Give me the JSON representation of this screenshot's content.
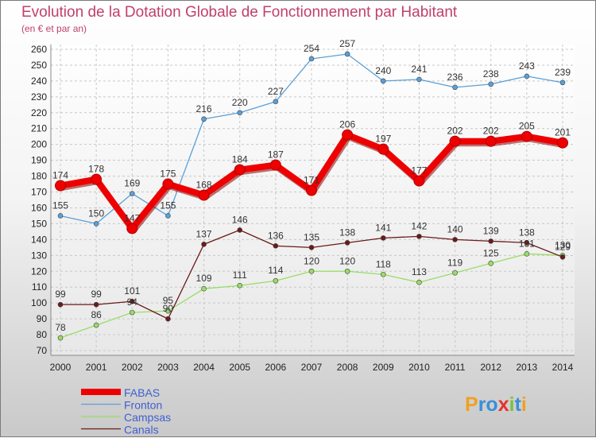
{
  "chart_data": {
    "type": "line",
    "title": "Evolution de la Dotation Globale de Fonctionnement par Habitant",
    "subtitle": "(en € et par an)",
    "x": [
      "2000",
      "2001",
      "2002",
      "2003",
      "2004",
      "2005",
      "2006",
      "2007",
      "2008",
      "2009",
      "2010",
      "2011",
      "2012",
      "2013",
      "2014"
    ],
    "ylim": [
      70,
      260
    ],
    "yticks": [
      70,
      80,
      90,
      100,
      110,
      120,
      130,
      140,
      150,
      160,
      170,
      180,
      190,
      200,
      210,
      220,
      230,
      240,
      250,
      260
    ],
    "grid": true,
    "legend_position": "bottom-left",
    "series": [
      {
        "name": "FABAS",
        "color": "#ee0000",
        "values": [
          174,
          178,
          147,
          175,
          168,
          184,
          187,
          171,
          206,
          197,
          177,
          202,
          202,
          205,
          201
        ]
      },
      {
        "name": "Fronton",
        "color": "#5aa0d8",
        "values": [
          155,
          150,
          169,
          155,
          216,
          220,
          227,
          254,
          257,
          240,
          241,
          236,
          238,
          243,
          239
        ]
      },
      {
        "name": "Campsas",
        "color": "#99dd66",
        "values": [
          78,
          86,
          94,
          95,
          109,
          111,
          114,
          120,
          120,
          118,
          113,
          119,
          125,
          131,
          130
        ]
      },
      {
        "name": "Canals",
        "color": "#6b1a1a",
        "values": [
          99,
          99,
          101,
          90,
          137,
          146,
          136,
          135,
          138,
          141,
          142,
          140,
          139,
          138,
          129
        ]
      }
    ],
    "data_labels": {
      "FABAS": [
        "174",
        "178",
        "147",
        "175",
        "168",
        "184",
        "187",
        "171",
        "206",
        "197",
        "177",
        "202",
        "202",
        "205",
        "201"
      ],
      "Fronton": [
        "155",
        "150",
        "169",
        "155",
        "216",
        "220",
        "227",
        "254",
        "257",
        "240",
        "241",
        "236",
        "238",
        "243",
        "239"
      ],
      "Campsas": [
        "78",
        "86",
        "94",
        "95",
        "109",
        "111",
        "114",
        "120",
        "120",
        "118",
        "113",
        "119",
        "125",
        "131",
        "130"
      ],
      "Canals": [
        "99",
        "99",
        "101",
        "90",
        "137",
        "146",
        "136",
        "135",
        "138",
        "141",
        "142",
        "140",
        "139",
        "138",
        "129"
      ]
    }
  },
  "logo": {
    "text": "Proxiti"
  }
}
